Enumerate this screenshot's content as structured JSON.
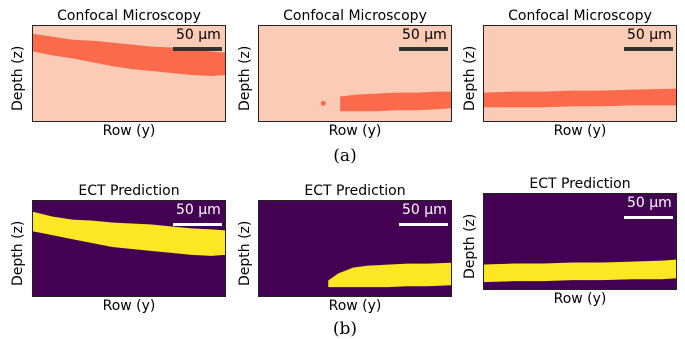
{
  "row_a": {
    "caption": "(a)",
    "panels": [
      {
        "title": "Confocal Microscopy",
        "xlabel": "Row (y)",
        "ylabel": "Depth (z)",
        "scalebar": "50 µm"
      },
      {
        "title": "Confocal Microscopy",
        "xlabel": "Row (y)",
        "ylabel": "Depth (z)",
        "scalebar": "50 µm"
      },
      {
        "title": "Confocal Microscopy",
        "xlabel": "Row (y)",
        "ylabel": "Depth (z)",
        "scalebar": "50 µm"
      }
    ]
  },
  "row_b": {
    "caption": "(b)",
    "panels": [
      {
        "title": "ECT Prediction",
        "xlabel": "Row (y)",
        "ylabel": "Depth (z)",
        "scalebar": "50 µm"
      },
      {
        "title": "ECT Prediction",
        "xlabel": "Row (y)",
        "ylabel": "Depth (z)",
        "scalebar": "50 µm"
      },
      {
        "title": "ECT Prediction",
        "xlabel": "Row (y)",
        "ylabel": "Depth (z)",
        "scalebar": "50 µm"
      }
    ]
  },
  "colors": {
    "confocal_background": "#fccbb5",
    "confocal_feature": "#fb6a4a",
    "ect_background": "#440154",
    "ect_feature": "#fde725",
    "confocal_scalebar": "#333333",
    "ect_scalebar": "#ffffff"
  }
}
